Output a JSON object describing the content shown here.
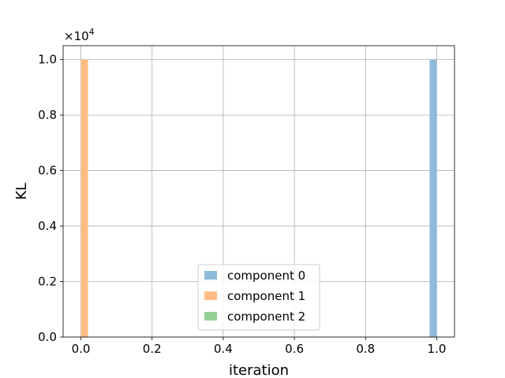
{
  "chart_data": {
    "type": "bar",
    "xlabel": "iteration",
    "ylabel": "KL",
    "xlim": [
      -0.05,
      1.05
    ],
    "ylim": [
      0,
      10500
    ],
    "y_scale_exponent": "×10^4",
    "x_ticks": [
      "0.0",
      "0.2",
      "0.4",
      "0.6",
      "0.8",
      "1.0"
    ],
    "x_tick_values": [
      0.0,
      0.2,
      0.4,
      0.6,
      0.8,
      1.0
    ],
    "y_ticks": [
      "0.0",
      "0.2",
      "0.4",
      "0.6",
      "0.8",
      "1.0"
    ],
    "y_tick_values": [
      0,
      2000,
      4000,
      6000,
      8000,
      10000
    ],
    "grid": true,
    "legend_position": "lower-center",
    "series": [
      {
        "name": "component 0",
        "color": "#8ebbdb",
        "bars": [
          {
            "x": 0.99,
            "value": 10000
          }
        ]
      },
      {
        "name": "component 1",
        "color": "#ffbd85",
        "bars": [
          {
            "x": 0.01,
            "value": 10000
          }
        ]
      },
      {
        "name": "component 2",
        "color": "#96d094",
        "bars": []
      }
    ],
    "bar_width": 0.02
  }
}
